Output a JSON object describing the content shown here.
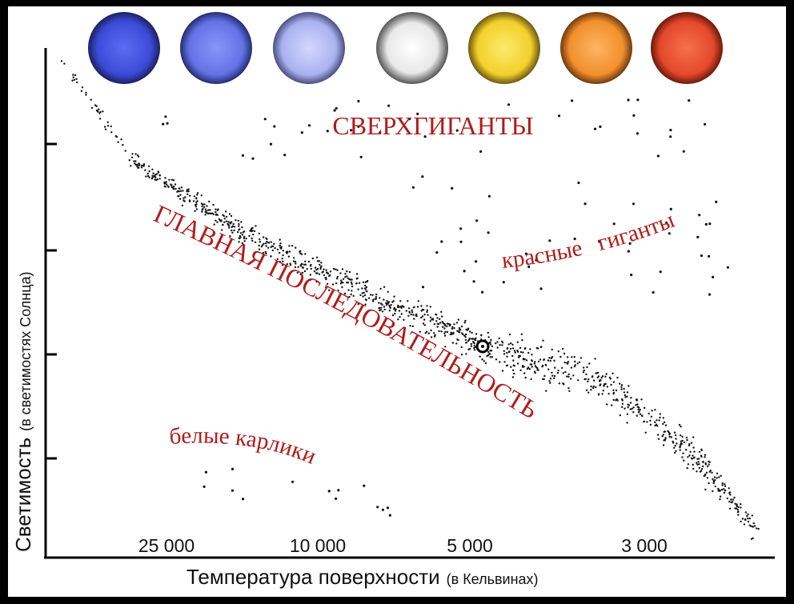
{
  "y_axis": {
    "title": "Светимость",
    "subtitle": "(в светимостях Солнца)"
  },
  "x_axis": {
    "title": "Температура поверхности",
    "subtitle": "(в Кельвинах)",
    "tick_labels": [
      "25 000",
      "10 000",
      "5 000",
      "3 000"
    ]
  },
  "regions": {
    "supergiants": "СВЕРХГИГАНТЫ",
    "main_sequence": "ГЛАВНАЯ ПОСЛЕДОВАТЕЛЬНОСТЬ",
    "red_giants": "красные гиганты",
    "white_dwarfs": "белые карлики"
  }
}
